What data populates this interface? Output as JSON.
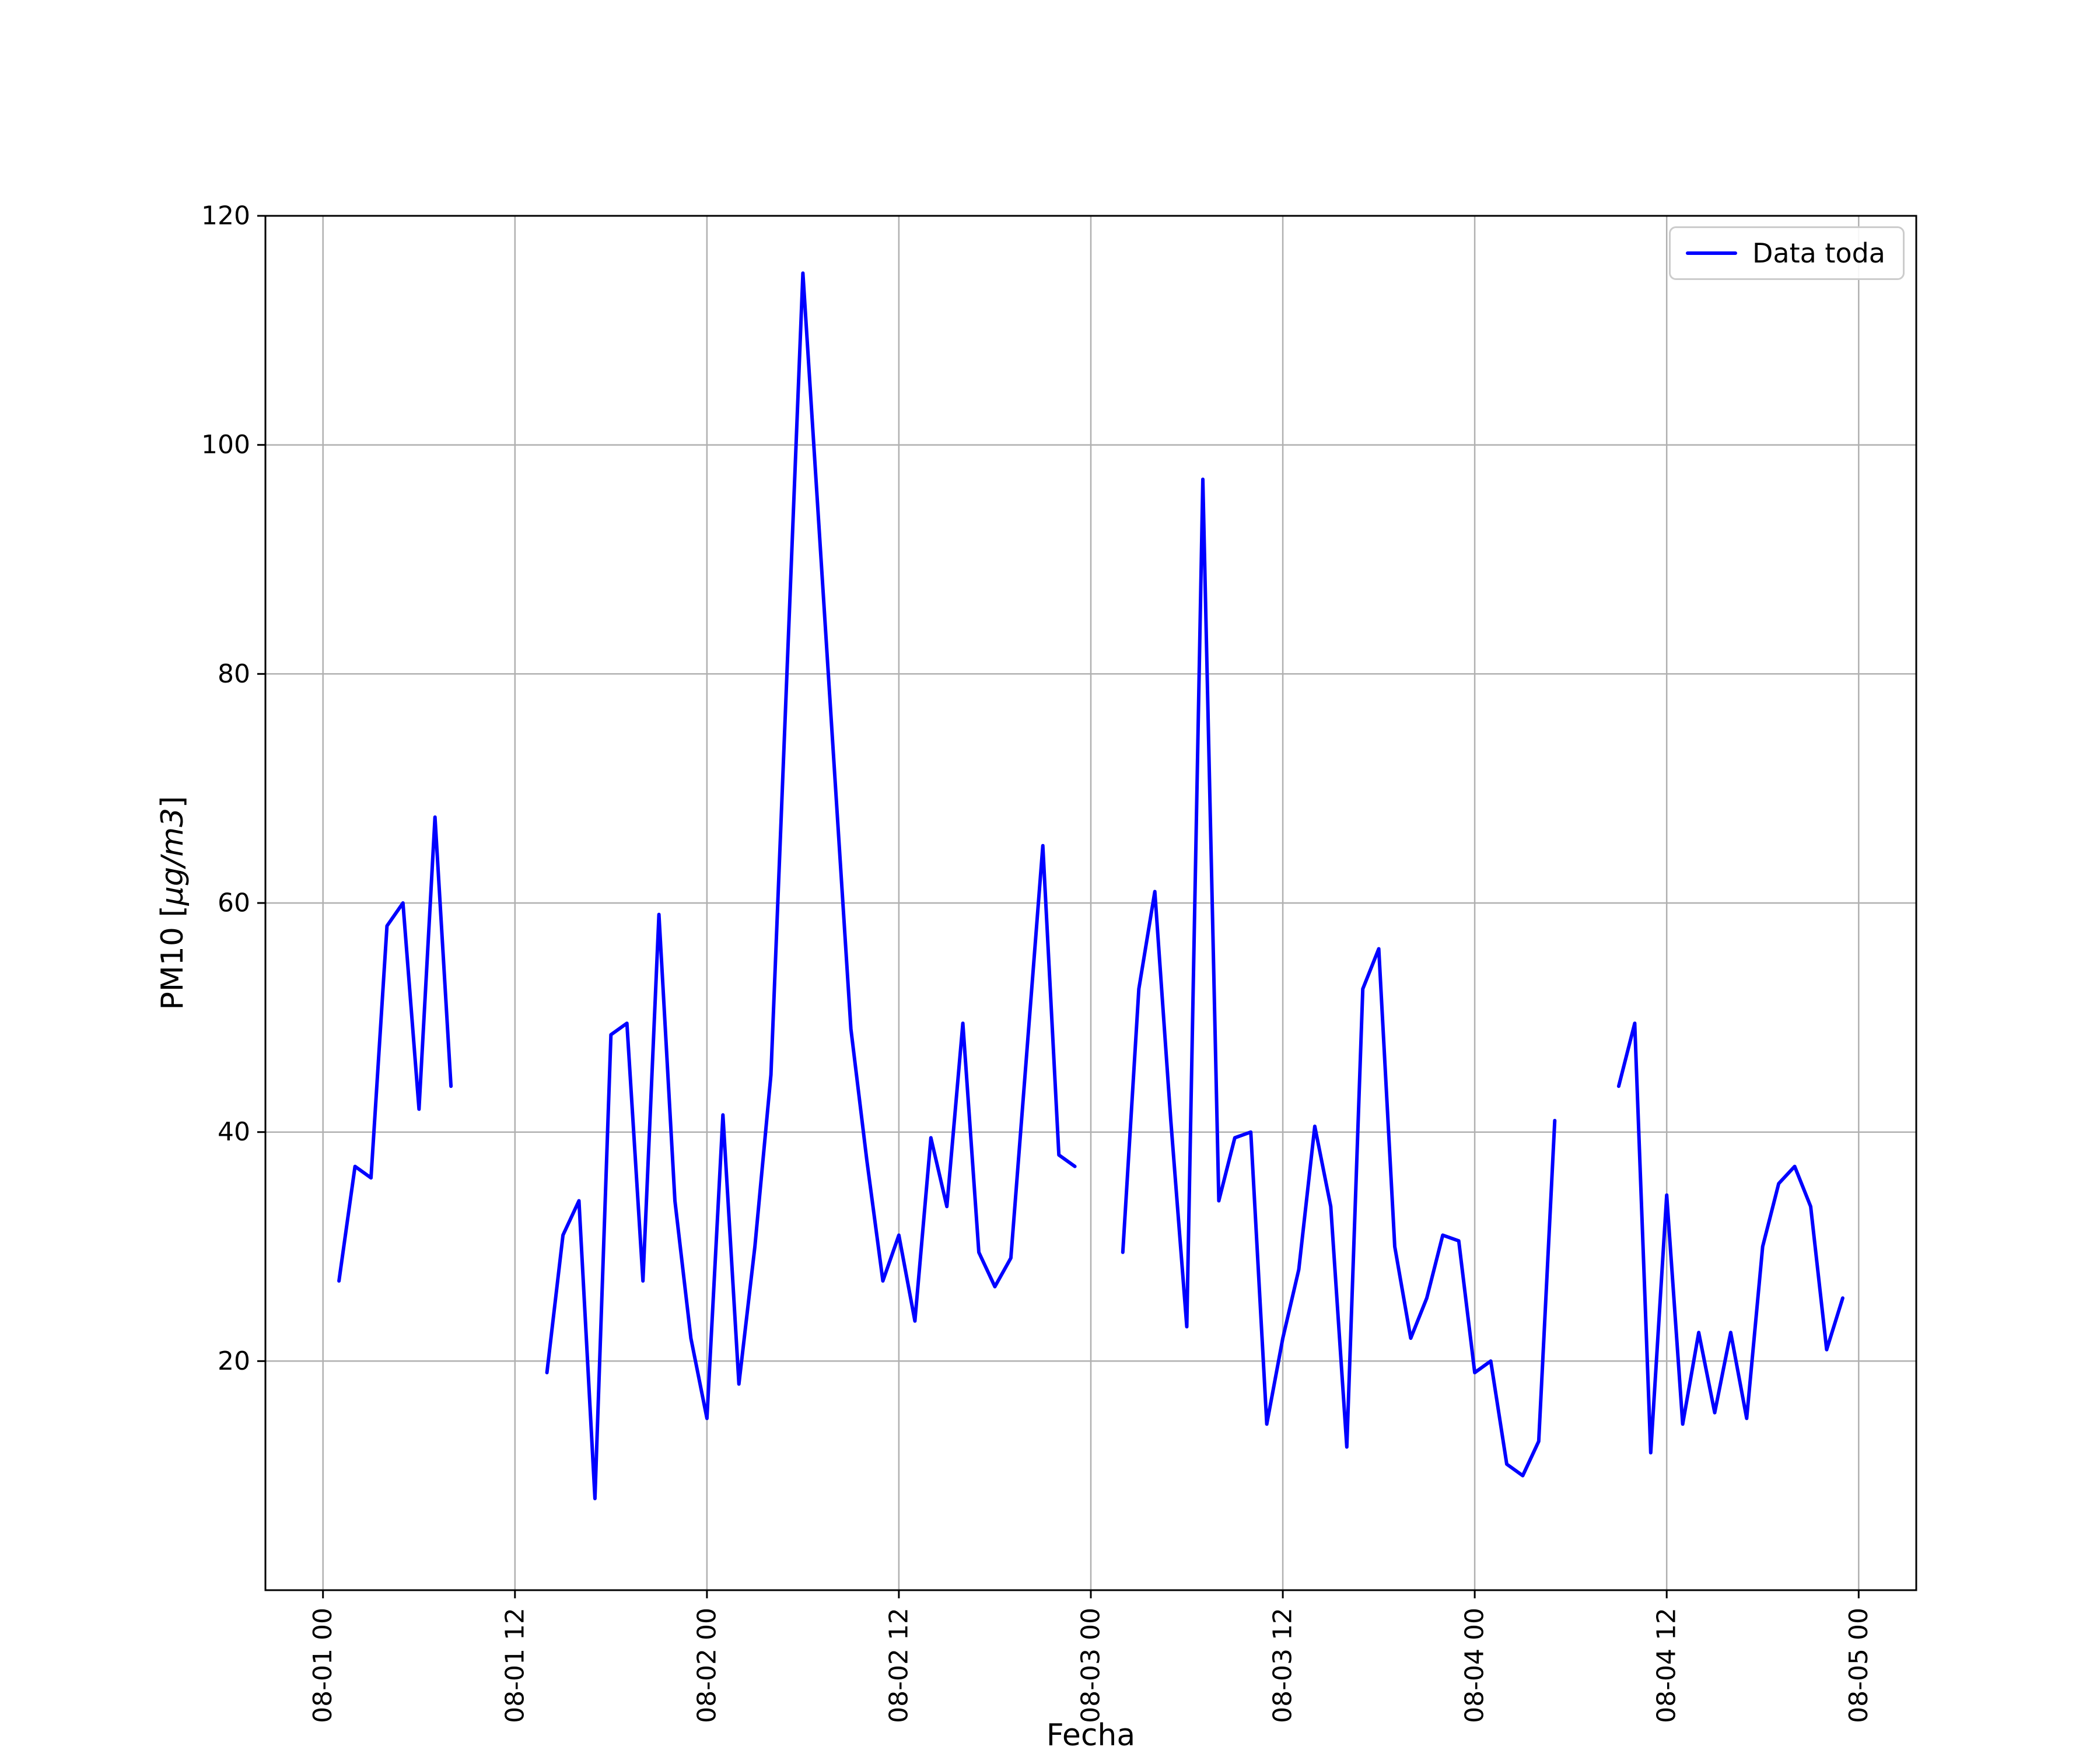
{
  "figure": {
    "background_color": "#ffffff",
    "spine_color": "#000000",
    "grid_color": "#b0b0b0"
  },
  "chart_data": {
    "type": "line",
    "title": "",
    "xlabel": "Fecha",
    "ylabel": "PM10 [μg/m3]",
    "ylabel_parts": {
      "prefix": "PM10 [",
      "units": "μg/m3",
      "suffix": "]"
    },
    "legend": {
      "position": "upper right",
      "entries": [
        {
          "label": "Data toda",
          "color": "#0000ff"
        }
      ]
    },
    "grid": true,
    "ylim": [
      0,
      120
    ],
    "xlim_hours": [
      -3.6,
      99.6
    ],
    "y_ticks": [
      20,
      40,
      60,
      80,
      100,
      120
    ],
    "x_axis_ticks": [
      {
        "hour": 0,
        "label": "08-01 00"
      },
      {
        "hour": 12,
        "label": "08-01 12"
      },
      {
        "hour": 24,
        "label": "08-02 00"
      },
      {
        "hour": 36,
        "label": "08-02 12"
      },
      {
        "hour": 48,
        "label": "08-03 00"
      },
      {
        "hour": 60,
        "label": "08-03 12"
      },
      {
        "hour": 72,
        "label": "08-04 00"
      },
      {
        "hour": 84,
        "label": "08-04 12"
      },
      {
        "hour": 96,
        "label": "08-05 00"
      }
    ],
    "series": [
      {
        "name": "Data toda",
        "color": "#0000ff",
        "line_width": 6,
        "x_hours": [
          1,
          2,
          3,
          4,
          5,
          6,
          7,
          8,
          9,
          10,
          11,
          12,
          13,
          14,
          15,
          16,
          17,
          18,
          19,
          20,
          21,
          22,
          23,
          24,
          25,
          26,
          27,
          28,
          29,
          30,
          31,
          32,
          33,
          34,
          35,
          36,
          37,
          38,
          39,
          40,
          41,
          42,
          43,
          44,
          45,
          46,
          47,
          48,
          49,
          50,
          51,
          52,
          53,
          54,
          55,
          56,
          57,
          58,
          59,
          60,
          61,
          62,
          63,
          64,
          65,
          66,
          67,
          68,
          69,
          70,
          71,
          72,
          73,
          74,
          75,
          76,
          77,
          78,
          79,
          80,
          81,
          82,
          83,
          84,
          85,
          86,
          87,
          88,
          89,
          90,
          91,
          92,
          93,
          94,
          95
        ],
        "values": [
          27,
          37,
          36,
          58,
          60,
          42,
          67.5,
          44,
          null,
          null,
          null,
          null,
          null,
          19,
          31,
          34,
          8,
          48.5,
          49.5,
          27,
          59,
          34,
          22,
          15,
          41.5,
          18,
          30,
          45,
          80,
          115,
          93,
          71,
          49,
          37.5,
          27,
          31,
          23.5,
          39.5,
          33.5,
          49.5,
          29.5,
          26.5,
          29,
          47,
          65,
          38,
          37,
          null,
          null,
          29.5,
          52.5,
          61,
          41,
          23,
          97,
          34,
          39.5,
          40,
          14.5,
          22,
          28,
          40.5,
          33.5,
          12.5,
          52.5,
          56,
          30,
          22,
          25.5,
          31,
          30.5,
          19,
          20,
          11,
          10,
          13,
          41,
          null,
          null,
          null,
          44,
          49.5,
          12,
          34.5,
          14.5,
          22.5,
          15.5,
          22.5,
          15,
          30,
          35.5,
          37,
          33.5,
          21,
          25.5
        ]
      }
    ]
  }
}
